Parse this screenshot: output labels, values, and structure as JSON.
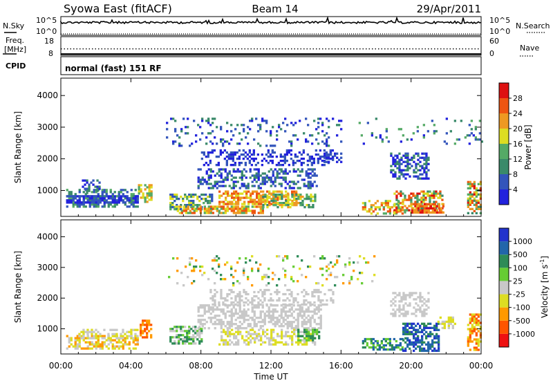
{
  "header": {
    "site": "Syowa East (fitACF)",
    "beam": "Beam 14",
    "date": "29/Apr/2011"
  },
  "noise_panel": {
    "left_label": "N.Sky",
    "right_label": "N.Search",
    "tick_top": "10^5",
    "tick_bottom": "10^0",
    "tick_top_right": "10^5",
    "tick_bottom_right": "10^0"
  },
  "freq_panel": {
    "left_label_1": "Freq.",
    "left_label_2": "[MHz]",
    "right_label": "Nave",
    "left_ticks": [
      "18",
      "8"
    ],
    "right_ticks": [
      "60",
      "0"
    ],
    "freq_range_mhz": [
      8,
      18
    ],
    "nave_range": [
      0,
      60
    ],
    "freq_value_mhz": 11.2,
    "nave_value": 2
  },
  "cpid_panel": {
    "label": "CPID",
    "mode_text": "normal (fast) 151 RF"
  },
  "colors": {
    "power_scale": [
      "#2222dd",
      "#3355bb",
      "#3a8a6a",
      "#55aa66",
      "#dddd22",
      "#ee9922",
      "#ee5511",
      "#dd1111"
    ],
    "velocity_scale": [
      "#2233cc",
      "#2266aa",
      "#2e8b57",
      "#66cc33",
      "#c8c8c8",
      "#dddd22",
      "#ff9900",
      "#ff5500",
      "#ee1111"
    ]
  },
  "chart_data": [
    {
      "type": "heatmap",
      "name": "power",
      "ylabel": "Slant Range [km]",
      "yticks": [
        "1000",
        "2000",
        "3000",
        "4000"
      ],
      "ylim": [
        180,
        4550
      ],
      "xlim_hours": [
        0,
        24
      ],
      "colorbar_label": "Power [dB]",
      "colorbar_ticks": [
        "4",
        "8",
        "12",
        "16",
        "20",
        "24",
        "28"
      ],
      "colorbar_range": [
        0,
        32
      ]
    },
    {
      "type": "heatmap",
      "name": "velocity",
      "ylabel": "Slant Range [km]",
      "yticks": [
        "1000",
        "2000",
        "3000",
        "4000"
      ],
      "ylim": [
        180,
        4550
      ],
      "xlim_hours": [
        0,
        24
      ],
      "xlabel": "Time UT",
      "xticks": [
        "00:00",
        "04:00",
        "08:00",
        "12:00",
        "16:00",
        "20:00",
        "00:00"
      ],
      "colorbar_label": "Velocity [m s^-1]",
      "colorbar_ticks": [
        "1000",
        "500",
        "100",
        "25",
        "-25",
        "-100",
        "-500",
        "-1000"
      ]
    }
  ]
}
